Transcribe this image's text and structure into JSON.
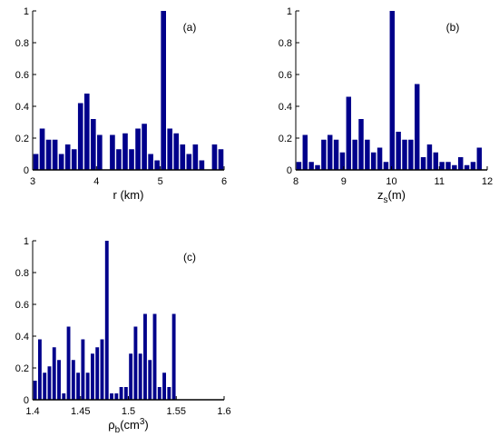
{
  "colors": {
    "bar": "#00008b",
    "axis": "#000000"
  },
  "chart_data": [
    {
      "type": "bar",
      "panel": "(a)",
      "xlabel": "r (km)",
      "xlim": [
        3,
        6
      ],
      "ylim": [
        0,
        1
      ],
      "xticks": [
        "3",
        "4",
        "5",
        "6"
      ],
      "yticks": [
        "0",
        "0.2",
        "0.4",
        "0.6",
        "0.8",
        "1"
      ],
      "bin_width": 0.1,
      "x": [
        3.05,
        3.15,
        3.25,
        3.35,
        3.45,
        3.55,
        3.65,
        3.75,
        3.85,
        3.95,
        4.05,
        4.15,
        4.25,
        4.35,
        4.45,
        4.55,
        4.65,
        4.75,
        4.85,
        4.95,
        5.05,
        5.15,
        5.25,
        5.35,
        5.45,
        5.55,
        5.65,
        5.75,
        5.85,
        5.95
      ],
      "values": [
        0.1,
        0.26,
        0.19,
        0.19,
        0.1,
        0.16,
        0.13,
        0.42,
        0.48,
        0.32,
        0.22,
        0,
        0.22,
        0.13,
        0.23,
        0.13,
        0.26,
        0.29,
        0.1,
        0.06,
        1.0,
        0.26,
        0.23,
        0.16,
        0.1,
        0.16,
        0.06,
        0,
        0.16,
        0.13
      ]
    },
    {
      "type": "bar",
      "panel": "(b)",
      "xlabel": "z",
      "xlabel_sub": "s",
      "xlabel_rest": "(m)",
      "xlim": [
        8,
        12
      ],
      "ylim": [
        0,
        1
      ],
      "xticks": [
        "8",
        "9",
        "10",
        "11",
        "12"
      ],
      "yticks": [
        "0",
        "0.2",
        "0.4",
        "0.6",
        "0.8",
        "1"
      ],
      "bin_width": 0.13,
      "x": [
        8.065,
        8.195,
        8.325,
        8.455,
        8.585,
        8.715,
        8.845,
        8.975,
        9.105,
        9.235,
        9.365,
        9.495,
        9.625,
        9.755,
        9.885,
        10.015,
        10.145,
        10.275,
        10.405,
        10.535,
        10.665,
        10.795,
        10.925,
        11.055,
        11.185,
        11.315,
        11.445,
        11.575,
        11.705,
        11.835
      ],
      "values": [
        0.05,
        0.22,
        0.05,
        0.03,
        0.19,
        0.22,
        0.19,
        0.11,
        0.46,
        0.19,
        0.32,
        0.19,
        0.11,
        0.14,
        0.05,
        1.0,
        0.24,
        0.19,
        0.19,
        0.54,
        0.08,
        0.16,
        0.11,
        0.05,
        0.05,
        0.03,
        0.08,
        0.03,
        0.05,
        0.14
      ]
    },
    {
      "type": "bar",
      "panel": "(c)",
      "xlabel": "ρ",
      "xlabel_sub": "b",
      "xlabel_rest": "(cm",
      "xlabel_sup": "3",
      "xlabel_end": ")",
      "xlim": [
        1.4,
        1.6
      ],
      "ylim": [
        0,
        1
      ],
      "xticks": [
        "1.4",
        "1.45",
        "1.5",
        "1.55",
        "1.6"
      ],
      "yticks": [
        "0",
        "0.2",
        "0.4",
        "0.6",
        "0.8",
        "1"
      ],
      "bin_width": 0.005,
      "x": [
        1.4025,
        1.4075,
        1.4125,
        1.4175,
        1.4225,
        1.4275,
        1.4325,
        1.4375,
        1.4425,
        1.4475,
        1.4525,
        1.4575,
        1.4625,
        1.4675,
        1.4725,
        1.4775,
        1.4825,
        1.4875,
        1.4925,
        1.4975,
        1.5025,
        1.5075,
        1.5125,
        1.5175,
        1.5225,
        1.5275,
        1.5325,
        1.5375,
        1.5425,
        1.5475,
        1.5525,
        1.5575,
        1.5625,
        1.5675,
        1.5725,
        1.5775,
        1.5825,
        1.5875,
        1.5925,
        1.5975
      ],
      "values": [
        0.12,
        0.38,
        0.17,
        0.21,
        0.33,
        0.25,
        0.04,
        0.46,
        0.25,
        0.17,
        0.38,
        0.17,
        0.29,
        0.33,
        0.38,
        1.0,
        0.04,
        0.04,
        0.08,
        0.08,
        0.29,
        0.46,
        0.29,
        0.54,
        0.25,
        0.54,
        0.08,
        0.17,
        0.08,
        0.54,
        0,
        0,
        0,
        0,
        0,
        0,
        0,
        0,
        0,
        0
      ]
    }
  ]
}
